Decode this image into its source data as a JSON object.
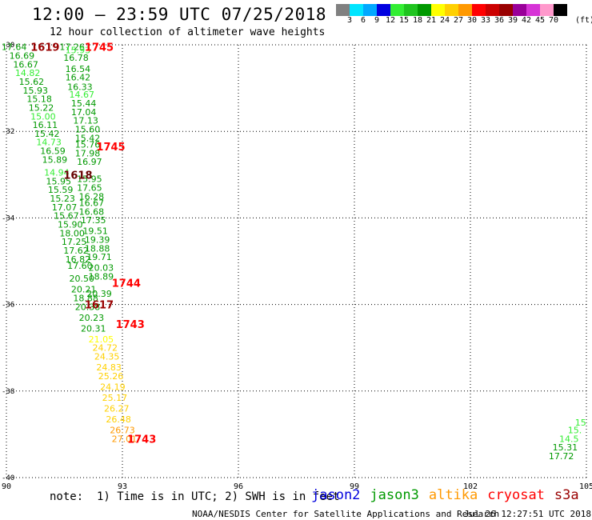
{
  "header": {
    "title": "12:00 – 23:59 UTC 07/25/2018",
    "subtitle": "12 hour collection of altimeter wave heights"
  },
  "colorbar": {
    "colors": [
      "#808080",
      "#00e5ff",
      "#00a8ff",
      "#0000e0",
      "#33ee33",
      "#1fc41f",
      "#009900",
      "#ffff00",
      "#ffd000",
      "#ff9900",
      "#ff0000",
      "#cc0000",
      "#990000",
      "#990099",
      "#d633d6",
      "#ff99cc",
      "#000000"
    ],
    "ticks": [
      "3",
      "6",
      "9",
      "12",
      "15",
      "18",
      "21",
      "24",
      "27",
      "30",
      "33",
      "36",
      "39",
      "42",
      "45",
      "70"
    ],
    "unit": "(ft)"
  },
  "chart_data": {
    "type": "scatter",
    "xlim": [
      90,
      105
    ],
    "ylim": [
      -40,
      -30
    ],
    "x_ticks": [
      "90",
      "93",
      "96",
      "99",
      "102",
      "105"
    ],
    "y_ticks": [
      "-30",
      "-32",
      "-34",
      "-36",
      "-38",
      "-40"
    ],
    "grid": true,
    "wave_labels": [
      {
        "text": "17.64",
        "x": 90.2,
        "y": -30.05,
        "color": "#009900"
      },
      {
        "text": "17.26",
        "x": 91.7,
        "y": -30.05,
        "color": "#009900"
      },
      {
        "text": "15.93",
        "x": 91.85,
        "y": -30.12,
        "color": "#33ee33"
      },
      {
        "text": "16.69",
        "x": 90.4,
        "y": -30.25,
        "color": "#009900"
      },
      {
        "text": "16.78",
        "x": 91.8,
        "y": -30.3,
        "color": "#009900"
      },
      {
        "text": "16.67",
        "x": 90.5,
        "y": -30.45,
        "color": "#009900"
      },
      {
        "text": "16.54",
        "x": 91.85,
        "y": -30.55,
        "color": "#009900"
      },
      {
        "text": "14.82",
        "x": 90.55,
        "y": -30.65,
        "color": "#33ee33"
      },
      {
        "text": "16.42",
        "x": 91.85,
        "y": -30.75,
        "color": "#009900"
      },
      {
        "text": "15.62",
        "x": 90.65,
        "y": -30.85,
        "color": "#009900"
      },
      {
        "text": "16.33",
        "x": 91.9,
        "y": -30.97,
        "color": "#009900"
      },
      {
        "text": "15.93",
        "x": 90.75,
        "y": -31.05,
        "color": "#009900"
      },
      {
        "text": "14.67",
        "x": 91.95,
        "y": -31.15,
        "color": "#33ee33"
      },
      {
        "text": "15.18",
        "x": 90.85,
        "y": -31.25,
        "color": "#009900"
      },
      {
        "text": "15.44",
        "x": 92.0,
        "y": -31.35,
        "color": "#009900"
      },
      {
        "text": "15.22",
        "x": 90.9,
        "y": -31.45,
        "color": "#009900"
      },
      {
        "text": "17.04",
        "x": 92.0,
        "y": -31.55,
        "color": "#009900"
      },
      {
        "text": "15.00",
        "x": 90.95,
        "y": -31.65,
        "color": "#33ee33"
      },
      {
        "text": "17.13",
        "x": 92.05,
        "y": -31.75,
        "color": "#009900"
      },
      {
        "text": "16.11",
        "x": 91.0,
        "y": -31.85,
        "color": "#009900"
      },
      {
        "text": "15.60",
        "x": 92.1,
        "y": -31.95,
        "color": "#009900"
      },
      {
        "text": "15.42",
        "x": 91.05,
        "y": -32.05,
        "color": "#009900"
      },
      {
        "text": "15.42",
        "x": 92.1,
        "y": -32.15,
        "color": "#009900"
      },
      {
        "text": "14.73",
        "x": 91.1,
        "y": -32.25,
        "color": "#33ee33"
      },
      {
        "text": "15.76",
        "x": 92.1,
        "y": -32.3,
        "color": "#009900"
      },
      {
        "text": "16.59",
        "x": 91.2,
        "y": -32.45,
        "color": "#009900"
      },
      {
        "text": "17.98",
        "x": 92.1,
        "y": -32.5,
        "color": "#009900"
      },
      {
        "text": "15.89",
        "x": 91.25,
        "y": -32.65,
        "color": "#009900"
      },
      {
        "text": "16.97",
        "x": 92.15,
        "y": -32.7,
        "color": "#009900"
      },
      {
        "text": "14.94",
        "x": 91.3,
        "y": -32.95,
        "color": "#33ee33"
      },
      {
        "text": "15.95",
        "x": 92.15,
        "y": -33.1,
        "color": "#009900"
      },
      {
        "text": "15.95",
        "x": 91.35,
        "y": -33.15,
        "color": "#009900"
      },
      {
        "text": "17.65",
        "x": 92.15,
        "y": -33.3,
        "color": "#009900"
      },
      {
        "text": "15.59",
        "x": 91.4,
        "y": -33.35,
        "color": "#009900"
      },
      {
        "text": "16.28",
        "x": 92.2,
        "y": -33.5,
        "color": "#009900"
      },
      {
        "text": "15.23",
        "x": 91.45,
        "y": -33.55,
        "color": "#009900"
      },
      {
        "text": "16.67",
        "x": 92.2,
        "y": -33.65,
        "color": "#009900"
      },
      {
        "text": "17.07",
        "x": 91.5,
        "y": -33.75,
        "color": "#009900"
      },
      {
        "text": "16.68",
        "x": 92.2,
        "y": -33.85,
        "color": "#009900"
      },
      {
        "text": "15.67",
        "x": 91.55,
        "y": -33.95,
        "color": "#009900"
      },
      {
        "text": "17.35",
        "x": 92.25,
        "y": -34.05,
        "color": "#009900"
      },
      {
        "text": "15.90",
        "x": 91.65,
        "y": -34.15,
        "color": "#009900"
      },
      {
        "text": "19.51",
        "x": 92.3,
        "y": -34.3,
        "color": "#009900"
      },
      {
        "text": "18.00",
        "x": 91.7,
        "y": -34.35,
        "color": "#009900"
      },
      {
        "text": "19.39",
        "x": 92.35,
        "y": -34.5,
        "color": "#009900"
      },
      {
        "text": "17.25",
        "x": 91.75,
        "y": -34.55,
        "color": "#009900"
      },
      {
        "text": "18.88",
        "x": 92.35,
        "y": -34.7,
        "color": "#009900"
      },
      {
        "text": "17.62",
        "x": 91.8,
        "y": -34.75,
        "color": "#009900"
      },
      {
        "text": "19.71",
        "x": 92.4,
        "y": -34.9,
        "color": "#009900"
      },
      {
        "text": "16.82",
        "x": 91.85,
        "y": -34.95,
        "color": "#009900"
      },
      {
        "text": "20.03",
        "x": 92.45,
        "y": -35.15,
        "color": "#009900"
      },
      {
        "text": "17.60",
        "x": 91.9,
        "y": -35.1,
        "color": "#009900"
      },
      {
        "text": "18.89",
        "x": 92.45,
        "y": -35.35,
        "color": "#009900"
      },
      {
        "text": "20.50",
        "x": 91.95,
        "y": -35.4,
        "color": "#009900"
      },
      {
        "text": "20.21",
        "x": 92.0,
        "y": -35.65,
        "color": "#009900"
      },
      {
        "text": "20.39",
        "x": 92.4,
        "y": -35.75,
        "color": "#009900"
      },
      {
        "text": "18.88",
        "x": 92.05,
        "y": -35.85,
        "color": "#009900"
      },
      {
        "text": "20.38",
        "x": 92.1,
        "y": -36.05,
        "color": "#009900"
      },
      {
        "text": "20.23",
        "x": 92.2,
        "y": -36.3,
        "color": "#009900"
      },
      {
        "text": "20.31",
        "x": 92.25,
        "y": -36.55,
        "color": "#009900"
      },
      {
        "text": "21.05",
        "x": 92.45,
        "y": -36.8,
        "color": "#ffff00"
      },
      {
        "text": "24.72",
        "x": 92.55,
        "y": -37.0,
        "color": "#ffd000"
      },
      {
        "text": "24.35",
        "x": 92.6,
        "y": -37.2,
        "color": "#ffd000"
      },
      {
        "text": "24.83",
        "x": 92.65,
        "y": -37.45,
        "color": "#ffd000"
      },
      {
        "text": "25.26",
        "x": 92.7,
        "y": -37.65,
        "color": "#ffd000"
      },
      {
        "text": "24.19",
        "x": 92.75,
        "y": -37.9,
        "color": "#ffd000"
      },
      {
        "text": "25.17",
        "x": 92.8,
        "y": -38.15,
        "color": "#ffd000"
      },
      {
        "text": "26.27",
        "x": 92.85,
        "y": -38.4,
        "color": "#ffd000"
      },
      {
        "text": "26.48",
        "x": 92.9,
        "y": -38.65,
        "color": "#ffd000"
      },
      {
        "text": "26.73",
        "x": 93.0,
        "y": -38.9,
        "color": "#ff9900"
      },
      {
        "text": "27.01",
        "x": 93.05,
        "y": -39.1,
        "color": "#ff9900"
      },
      {
        "text": "15",
        "x": 104.85,
        "y": -38.72,
        "color": "#33ee33"
      },
      {
        "text": "15.",
        "x": 104.7,
        "y": -38.9,
        "color": "#33ee33"
      },
      {
        "text": "14.5",
        "x": 104.55,
        "y": -39.1,
        "color": "#33ee33"
      },
      {
        "text": "15.31",
        "x": 104.45,
        "y": -39.3,
        "color": "#009900"
      },
      {
        "text": "17.72",
        "x": 104.35,
        "y": -39.5,
        "color": "#009900"
      }
    ],
    "time_labels": [
      {
        "text": "1619",
        "x": 91.0,
        "y": -30.05,
        "color": "#990000"
      },
      {
        "text": "1745",
        "x": 92.4,
        "y": -30.05,
        "color": "#ff0000"
      },
      {
        "text": "1745",
        "x": 92.7,
        "y": -32.35,
        "color": "#ff0000"
      },
      {
        "text": "1618",
        "x": 91.85,
        "y": -33.0,
        "color": "#660000"
      },
      {
        "text": "1744",
        "x": 93.1,
        "y": -35.5,
        "color": "#ff0000"
      },
      {
        "text": "1617",
        "x": 92.4,
        "y": -36.0,
        "color": "#990000"
      },
      {
        "text": "1743",
        "x": 93.2,
        "y": -36.45,
        "color": "#ff0000"
      },
      {
        "text": "1743",
        "x": 93.5,
        "y": -39.1,
        "color": "#ff0000"
      }
    ]
  },
  "note": "note:  1) Time is in UTC; 2) SWH is in feet",
  "legend": [
    {
      "label": "jason2",
      "color": "#0000dd"
    },
    {
      "label": "jason3",
      "color": "#009900"
    },
    {
      "label": "altika",
      "color": "#ff9900"
    },
    {
      "label": "cryosat",
      "color": "#ff0000"
    },
    {
      "label": "s3a",
      "color": "#990000"
    }
  ],
  "footer": {
    "credit": "NOAA/NESDIS Center for Satellite Applications and Research",
    "generated": "Jul 26 12:27:51 UTC 2018"
  }
}
